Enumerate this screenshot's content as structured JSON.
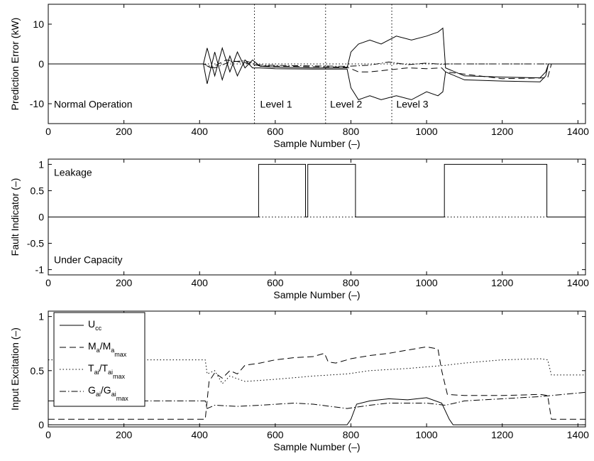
{
  "chart_data": [
    {
      "type": "line",
      "title": "",
      "xlabel": "Sample Number (–)",
      "ylabel": "Prediction Error (kW)",
      "xlim": [
        0,
        1420
      ],
      "ylim": [
        -15,
        15
      ],
      "xticks": [
        0,
        200,
        400,
        600,
        800,
        1000,
        1200,
        1400
      ],
      "yticks": [
        -10,
        0,
        10
      ],
      "grid": false,
      "annotations": [
        {
          "text": "Normal Operation",
          "x": 15,
          "y": -11
        },
        {
          "text": "Level 1",
          "x": 560,
          "y": -11
        },
        {
          "text": "Level 2",
          "x": 745,
          "y": -11
        },
        {
          "text": "Level 3",
          "x": 920,
          "y": -11
        }
      ],
      "vlines": [
        545,
        733,
        908
      ],
      "series": [
        {
          "style": "solid",
          "x": [
            0,
            410,
            420,
            440,
            460,
            480,
            500,
            520,
            540,
            560,
            600,
            700,
            790,
            800,
            820,
            850,
            880,
            920,
            960,
            1000,
            1030,
            1043,
            1050,
            1100,
            1200,
            1300,
            1315,
            1322,
            1330,
            1420
          ],
          "y": [
            0,
            0,
            4,
            -3,
            4,
            -2,
            3,
            -1,
            1,
            -0.6,
            -0.8,
            -1,
            -1,
            3,
            5,
            6,
            5,
            7,
            6,
            7,
            8,
            9,
            -1,
            -3,
            -3.3,
            -3.5,
            -2,
            0,
            0,
            0
          ]
        },
        {
          "style": "solid",
          "x": [
            0,
            410,
            420,
            440,
            460,
            480,
            500,
            520,
            540,
            560,
            600,
            700,
            790,
            800,
            820,
            850,
            880,
            920,
            960,
            1000,
            1030,
            1043,
            1050,
            1100,
            1200,
            1300,
            1315,
            1322,
            1330,
            1420
          ],
          "y": [
            0,
            0,
            -5,
            3,
            -4,
            2,
            -3,
            1,
            -1,
            -1,
            -1.2,
            -1.3,
            -1.3,
            -6,
            -9,
            -8,
            -9,
            -8,
            -9,
            -7,
            -8,
            -7,
            -2,
            -4,
            -4.3,
            -4.5,
            -3,
            0,
            0,
            0
          ]
        },
        {
          "style": "dashed",
          "x": [
            0,
            410,
            430,
            470,
            520,
            560,
            700,
            790,
            820,
            850,
            900,
            950,
            1000,
            1040,
            1050,
            1200,
            1320,
            1330,
            1420
          ],
          "y": [
            0,
            0,
            -1,
            1,
            0.3,
            -0.5,
            -0.7,
            -0.8,
            -2,
            -2,
            -1.5,
            -1,
            -1.2,
            -1,
            -2,
            -3.7,
            -3.5,
            0,
            0
          ]
        },
        {
          "style": "dashdot",
          "x": [
            0,
            410,
            440,
            480,
            520,
            560,
            700,
            790,
            850,
            900,
            950,
            1000,
            1040,
            1055,
            1420
          ],
          "y": [
            0,
            0,
            -1,
            0.5,
            0.8,
            -0.3,
            -0.5,
            -0.6,
            -0.3,
            0.5,
            -0.2,
            0.2,
            -0.1,
            0,
            0
          ]
        },
        {
          "style": "dotted",
          "x": [
            0,
            1420
          ],
          "y": [
            0,
            0
          ]
        }
      ]
    },
    {
      "type": "line",
      "title": "",
      "xlabel": "Sample Number (–)",
      "ylabel": "Fault Indicator (–)",
      "xlim": [
        0,
        1420
      ],
      "ylim": [
        -1.1,
        1.1
      ],
      "xticks": [
        0,
        200,
        400,
        600,
        800,
        1000,
        1200,
        1400
      ],
      "yticks": [
        -1,
        -0.5,
        0,
        0.5,
        1
      ],
      "grid": false,
      "annotations": [
        {
          "text": "Leakage",
          "x": 15,
          "y": 0.78
        },
        {
          "text": "Under Capacity",
          "x": 15,
          "y": -0.88
        }
      ],
      "series": [
        {
          "style": "solid",
          "x": [
            0,
            556,
            556,
            680,
            680,
            686,
            686,
            812,
            812,
            1047,
            1047,
            1318,
            1318,
            1420
          ],
          "y": [
            0,
            0,
            1,
            1,
            0,
            0,
            1,
            1,
            0,
            0,
            1,
            1,
            0,
            0
          ]
        },
        {
          "style": "dotted",
          "x": [
            0,
            1420
          ],
          "y": [
            0,
            0
          ]
        }
      ]
    },
    {
      "type": "line",
      "title": "",
      "xlabel": "Sample Number (–)",
      "ylabel": "Input Excitation (–)",
      "xlim": [
        0,
        1420
      ],
      "ylim": [
        -0.02,
        1.05
      ],
      "xticks": [
        0,
        200,
        400,
        600,
        800,
        1000,
        1200,
        1400
      ],
      "yticks": [
        0,
        0.5,
        1
      ],
      "grid": false,
      "legend": {
        "position": "top-left",
        "entries": [
          {
            "label": "U",
            "sub": "cc",
            "style": "solid"
          },
          {
            "label": "M",
            "sub": "a",
            "label2": "/M",
            "sub2": "a",
            "sub3": "max",
            "style": "dashed"
          },
          {
            "label": "T",
            "sub": "ai",
            "label2": "/T",
            "sub2": "ai",
            "sub3": "max",
            "style": "dotted"
          },
          {
            "label": "G",
            "sub": "ai",
            "label2": "/G",
            "sub2": "ai",
            "sub3": "max",
            "style": "dashdot"
          }
        ]
      },
      "series": [
        {
          "name": "U_cc",
          "style": "solid",
          "x": [
            0,
            790,
            800,
            815,
            850,
            900,
            950,
            1000,
            1040,
            1060,
            1070,
            1420
          ],
          "y": [
            0,
            0,
            0.05,
            0.19,
            0.22,
            0.24,
            0.23,
            0.25,
            0.2,
            0.05,
            0,
            0
          ]
        },
        {
          "name": "M_a/M_a_max",
          "style": "dashed",
          "x": [
            0,
            415,
            425,
            440,
            460,
            480,
            500,
            520,
            560,
            600,
            650,
            700,
            730,
            740,
            760,
            800,
            850,
            900,
            950,
            1000,
            1030,
            1040,
            1055,
            1100,
            1200,
            1300,
            1320,
            1330,
            1420
          ],
          "y": [
            0.05,
            0.05,
            0.4,
            0.48,
            0.43,
            0.5,
            0.47,
            0.55,
            0.57,
            0.6,
            0.62,
            0.63,
            0.66,
            0.58,
            0.57,
            0.61,
            0.64,
            0.66,
            0.69,
            0.72,
            0.7,
            0.5,
            0.28,
            0.27,
            0.27,
            0.28,
            0.27,
            0.05,
            0.05
          ]
        },
        {
          "name": "T_ai/T_ai_max",
          "style": "dotted",
          "x": [
            0,
            415,
            420,
            440,
            460,
            480,
            520,
            600,
            700,
            790,
            850,
            950,
            1050,
            1100,
            1200,
            1300,
            1320,
            1330,
            1420
          ],
          "y": [
            0.6,
            0.6,
            0.47,
            0.5,
            0.38,
            0.45,
            0.4,
            0.42,
            0.45,
            0.47,
            0.5,
            0.52,
            0.55,
            0.57,
            0.6,
            0.61,
            0.6,
            0.46,
            0.46
          ]
        },
        {
          "name": "G_ai/G_ai_max",
          "style": "dashdot",
          "x": [
            0,
            415,
            420,
            440,
            500,
            560,
            650,
            700,
            790,
            850,
            900,
            1000,
            1050,
            1100,
            1200,
            1300,
            1420
          ],
          "y": [
            0.22,
            0.22,
            0.15,
            0.18,
            0.17,
            0.18,
            0.2,
            0.19,
            0.15,
            0.18,
            0.2,
            0.2,
            0.18,
            0.22,
            0.24,
            0.26,
            0.3
          ]
        }
      ]
    }
  ]
}
